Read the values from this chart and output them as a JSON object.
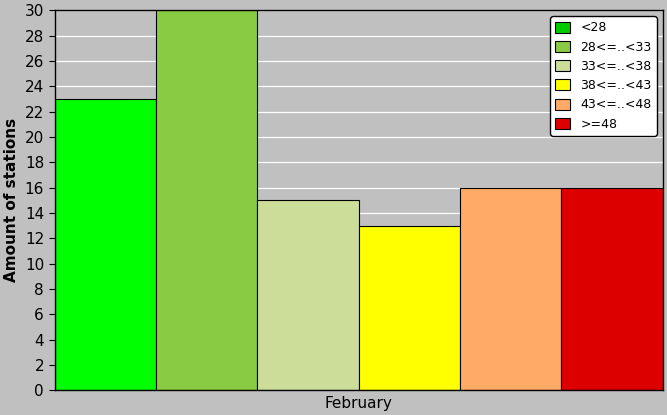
{
  "bars": [
    {
      "value": 23,
      "color": "#00ff00",
      "label": "<28"
    },
    {
      "value": 30,
      "color": "#88cc44",
      "label": "28<=..<33"
    },
    {
      "value": 15,
      "color": "#ccdd99",
      "label": "33<=..<38"
    },
    {
      "value": 13,
      "color": "#ffff00",
      "label": "38<=..<43"
    },
    {
      "value": 16,
      "color": "#ffaa66",
      "label": "43<=..<48"
    },
    {
      "value": 16,
      "color": "#dd0000",
      "label": ">=48"
    }
  ],
  "xlabel": "February",
  "ylabel": "Amount of stations",
  "ylim": [
    0,
    30
  ],
  "yticks": [
    0,
    2,
    4,
    6,
    8,
    10,
    12,
    14,
    16,
    18,
    20,
    22,
    24,
    26,
    28,
    30
  ],
  "background_color": "#c0c0c0",
  "plot_bg_color": "#c0c0c0",
  "bar_edge_color": "#000000",
  "legend_colors": [
    "#00cc00",
    "#88cc44",
    "#ccdd99",
    "#ffff00",
    "#ffaa66",
    "#dd0000"
  ],
  "legend_labels": [
    "<28",
    "28<=..<33",
    "33<=..<38",
    "38<=..<43",
    "43<=..<48",
    ">=48"
  ],
  "axis_fontsize": 11,
  "legend_fontsize": 9,
  "figsize": [
    6.67,
    4.15
  ],
  "dpi": 100
}
